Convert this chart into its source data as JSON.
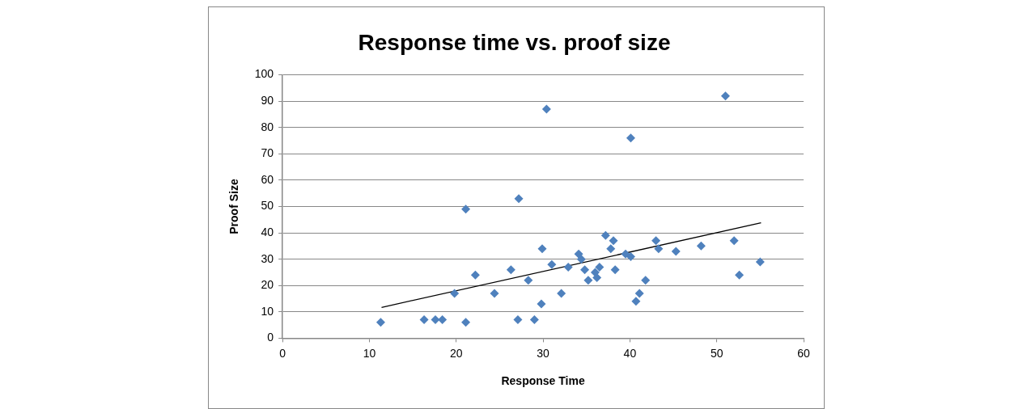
{
  "chart_data": {
    "type": "scatter",
    "title": "Response time vs. proof size",
    "xlabel": "Response Time",
    "ylabel": "Proof Size",
    "xlim": [
      0,
      60
    ],
    "xticks": [
      0,
      10,
      20,
      30,
      40,
      50,
      60
    ],
    "ylim": [
      0,
      100
    ],
    "yticks": [
      0,
      10,
      20,
      30,
      40,
      50,
      60,
      70,
      80,
      90,
      100
    ],
    "grid": "y",
    "legend": false,
    "marker": "diamond",
    "series": [
      {
        "color": "#4f81bd",
        "x": [
          11.3,
          16.3,
          17.6,
          18.4,
          19.8,
          21.1,
          21.1,
          22.2,
          24.4,
          26.3,
          27.1,
          27.2,
          28.3,
          29.0,
          29.8,
          29.9,
          30.4,
          31.0,
          32.1,
          32.9,
          34.1,
          34.4,
          34.8,
          35.2,
          36.0,
          36.5,
          36.2,
          37.2,
          38.1,
          37.8,
          38.3,
          39.5,
          40.1,
          40.1,
          40.7,
          41.1,
          41.8,
          43.0,
          43.3,
          45.3,
          48.2,
          51.0,
          52.0,
          52.6,
          55.0
        ],
        "values": [
          6,
          7,
          7,
          7,
          17,
          49,
          6,
          24,
          17,
          26,
          7,
          53,
          22,
          7,
          13,
          34,
          87,
          28,
          17,
          27,
          32,
          30,
          26,
          22,
          25,
          27,
          23,
          39,
          37,
          34,
          26,
          32,
          31,
          76,
          14,
          17,
          22,
          37,
          34,
          33,
          35,
          92,
          37,
          24,
          29
        ]
      },
      {
        "type": "line",
        "color": "#000000",
        "marker": "none",
        "x": [
          11.4,
          55.1
        ],
        "values": [
          11.7,
          43.8
        ]
      }
    ]
  }
}
